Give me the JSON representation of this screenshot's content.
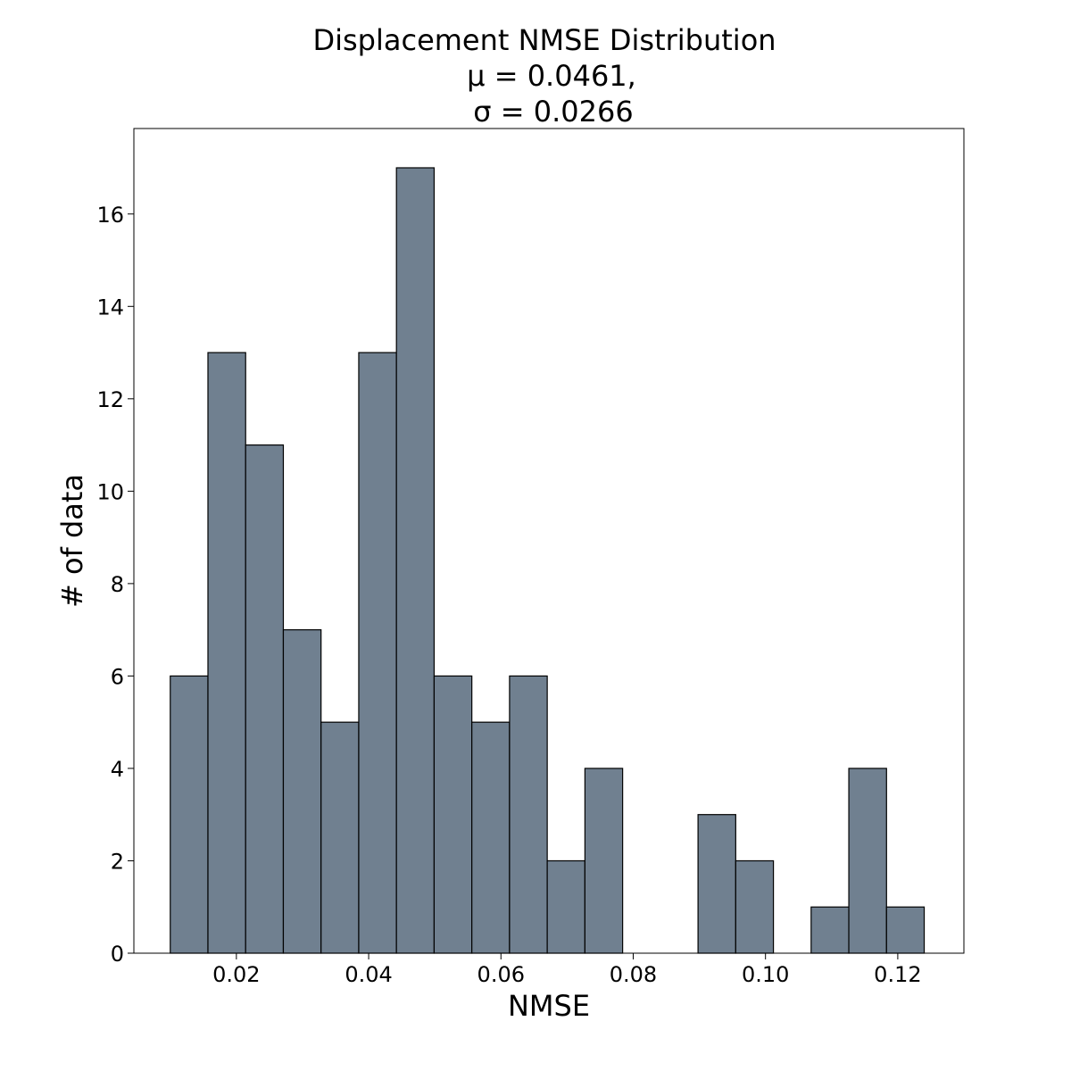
{
  "chart_data": {
    "type": "bar",
    "title_lines": [
      "Displacement NMSE Distribution",
      "μ = 0.0461,",
      "σ = 0.0266"
    ],
    "xlabel": "NMSE",
    "ylabel": "# of data",
    "xlim": [
      0.0045,
      0.13
    ],
    "ylim": [
      0,
      17.85
    ],
    "x_ticks": [
      0.02,
      0.04,
      0.06,
      0.08,
      0.1,
      0.12
    ],
    "x_tick_labels": [
      "0.02",
      "0.04",
      "0.06",
      "0.08",
      "0.10",
      "0.12"
    ],
    "y_ticks": [
      0,
      2,
      4,
      6,
      8,
      10,
      12,
      14,
      16
    ],
    "y_tick_labels": [
      "0",
      "2",
      "4",
      "6",
      "8",
      "10",
      "12",
      "14",
      "16"
    ],
    "bin_edges": [
      0.01,
      0.0157,
      0.0214,
      0.0271,
      0.0328,
      0.0385,
      0.0442,
      0.0499,
      0.0556,
      0.0613,
      0.067,
      0.0727,
      0.0784,
      0.0841,
      0.0898,
      0.0955,
      0.1012,
      0.1069,
      0.1126,
      0.1183,
      0.124
    ],
    "counts": [
      6,
      13,
      11,
      7,
      5,
      13,
      17,
      6,
      5,
      6,
      2,
      4,
      0,
      0,
      3,
      2,
      0,
      1,
      4,
      1
    ],
    "grid": false,
    "bar_color": "#708090"
  }
}
